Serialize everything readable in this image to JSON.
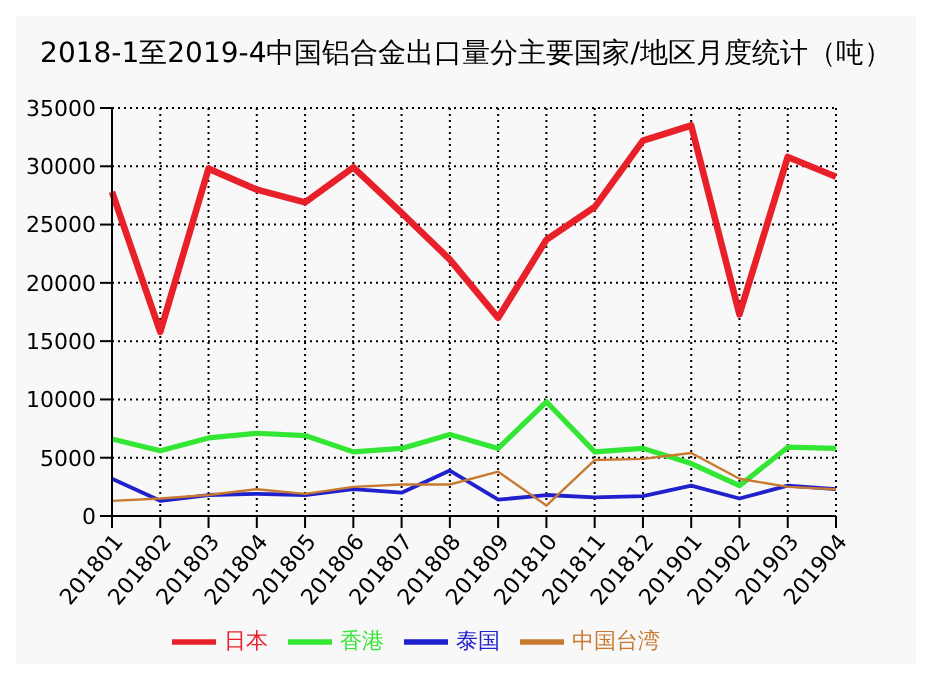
{
  "chart_data": {
    "type": "line",
    "title": "2018-1至2019-4中国铝合金出口量分主要国家/地区月度统计（吨）",
    "categories": [
      "201801",
      "201802",
      "201803",
      "201804",
      "201805",
      "201806",
      "201807",
      "201808",
      "201809",
      "201810",
      "201811",
      "201812",
      "201901",
      "201902",
      "201903",
      "201904"
    ],
    "series": [
      {
        "name": "日本",
        "color": "#e8202a",
        "values": [
          27800,
          15800,
          29800,
          28000,
          26900,
          29900,
          26000,
          22000,
          17000,
          23700,
          26500,
          32200,
          33500,
          17300,
          30800,
          29100
        ]
      },
      {
        "name": "香港",
        "color": "#33e633",
        "values": [
          6600,
          5600,
          6700,
          7100,
          6900,
          5500,
          5800,
          7000,
          5800,
          9800,
          5500,
          5800,
          4500,
          2600,
          5900,
          5800
        ]
      },
      {
        "name": "泰国",
        "color": "#2020cc",
        "values": [
          3200,
          1300,
          1800,
          1900,
          1800,
          2300,
          2000,
          3900,
          1400,
          1800,
          1600,
          1700,
          2600,
          1500,
          2600,
          2300
        ]
      },
      {
        "name": "中国台湾",
        "color": "#c87a30",
        "values": [
          1300,
          1500,
          1800,
          2300,
          1900,
          2500,
          2700,
          2700,
          3800,
          900,
          4800,
          4900,
          5400,
          3200,
          2500,
          2300
        ]
      }
    ],
    "ylim": [
      0,
      35000
    ],
    "yticks": [
      0,
      5000,
      10000,
      15000,
      20000,
      25000,
      30000,
      35000
    ],
    "grid": true,
    "legend": "bottom",
    "marker": "none",
    "line_style": "solid"
  }
}
